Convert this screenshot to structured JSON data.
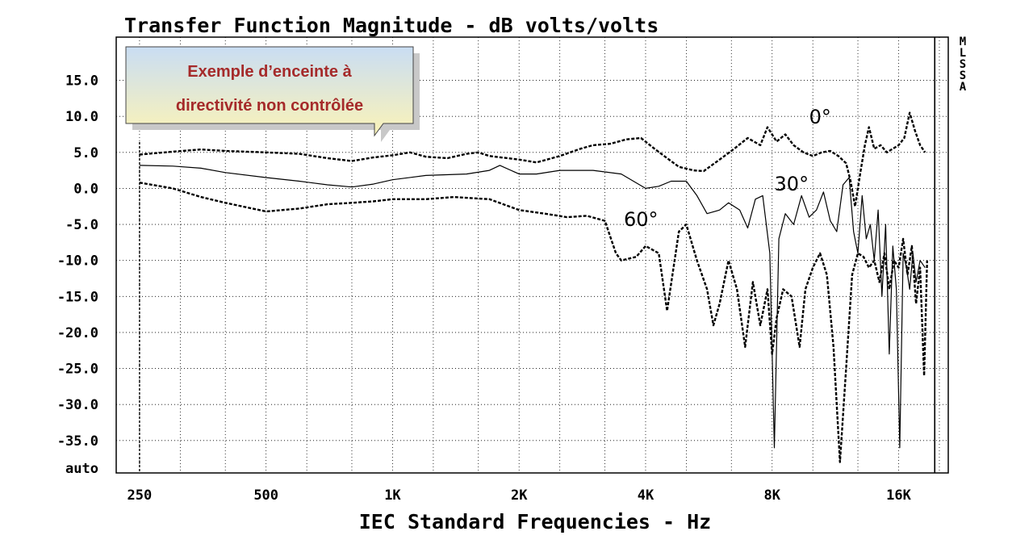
{
  "chart_data": {
    "type": "line",
    "title": "Transfer Function Magnitude - dB volts/volts",
    "xlabel": "IEC Standard Frequencies - Hz",
    "ylabel": "",
    "x_scale": "log",
    "xlim": [
      220,
      21000
    ],
    "ylim": [
      -39.5,
      21
    ],
    "y_ticks": [
      15,
      10,
      5,
      0,
      -5,
      -10,
      -15,
      -20,
      -25,
      -30,
      -35
    ],
    "y_tick_labels": [
      "15.0",
      "10.0",
      "5.0",
      "0.0",
      "-5.0",
      "-10.0",
      "-15.0",
      "-20.0",
      "-25.0",
      "-30.0",
      "-35.0"
    ],
    "y_bottom_label": "auto",
    "x_ticks": [
      250,
      500,
      1000,
      2000,
      4000,
      8000,
      16000
    ],
    "x_tick_labels": [
      "250",
      "500",
      "1K",
      "2K",
      "4K",
      "8K",
      "16K"
    ],
    "side_label": "MLSSA",
    "grid": true,
    "marker_x": 19500,
    "series": [
      {
        "name": "0°",
        "style": "dashed",
        "points": [
          [
            250,
            4.7
          ],
          [
            300,
            5.1
          ],
          [
            350,
            5.4
          ],
          [
            400,
            5.2
          ],
          [
            500,
            5.0
          ],
          [
            600,
            4.8
          ],
          [
            700,
            4.2
          ],
          [
            800,
            3.8
          ],
          [
            900,
            4.3
          ],
          [
            1000,
            4.6
          ],
          [
            1100,
            5.0
          ],
          [
            1200,
            4.4
          ],
          [
            1350,
            4.2
          ],
          [
            1500,
            4.8
          ],
          [
            1600,
            5.0
          ],
          [
            1700,
            4.5
          ],
          [
            2000,
            4.0
          ],
          [
            2200,
            3.6
          ],
          [
            2500,
            4.5
          ],
          [
            2800,
            5.5
          ],
          [
            3000,
            6.0
          ],
          [
            3300,
            6.2
          ],
          [
            3600,
            6.8
          ],
          [
            3900,
            7.0
          ],
          [
            4200,
            5.5
          ],
          [
            4500,
            4.2
          ],
          [
            4800,
            3.0
          ],
          [
            5200,
            2.5
          ],
          [
            5500,
            2.4
          ],
          [
            6000,
            4.0
          ],
          [
            6500,
            5.5
          ],
          [
            7000,
            7.0
          ],
          [
            7500,
            6.0
          ],
          [
            7800,
            8.5
          ],
          [
            8200,
            6.5
          ],
          [
            8600,
            7.5
          ],
          [
            9000,
            6.0
          ],
          [
            9500,
            5.0
          ],
          [
            10000,
            4.5
          ],
          [
            10500,
            5.0
          ],
          [
            11000,
            5.2
          ],
          [
            11500,
            4.5
          ],
          [
            12000,
            3.5
          ],
          [
            12300,
            1.0
          ],
          [
            12600,
            -2.5
          ],
          [
            13000,
            2.5
          ],
          [
            13300,
            6.0
          ],
          [
            13600,
            8.5
          ],
          [
            14000,
            5.5
          ],
          [
            14500,
            6.0
          ],
          [
            15000,
            5.0
          ],
          [
            15500,
            5.5
          ],
          [
            16000,
            6.0
          ],
          [
            16500,
            7.0
          ],
          [
            17000,
            10.5
          ],
          [
            17500,
            8.0
          ],
          [
            18000,
            6.0
          ],
          [
            18500,
            5.0
          ]
        ]
      },
      {
        "name": "30°",
        "style": "solid",
        "points": [
          [
            250,
            3.2
          ],
          [
            300,
            3.1
          ],
          [
            350,
            2.8
          ],
          [
            400,
            2.2
          ],
          [
            500,
            1.5
          ],
          [
            600,
            1.0
          ],
          [
            700,
            0.5
          ],
          [
            800,
            0.2
          ],
          [
            900,
            0.6
          ],
          [
            1000,
            1.2
          ],
          [
            1200,
            1.8
          ],
          [
            1500,
            2.0
          ],
          [
            1700,
            2.5
          ],
          [
            1800,
            3.2
          ],
          [
            2000,
            2.0
          ],
          [
            2200,
            2.0
          ],
          [
            2500,
            2.5
          ],
          [
            3000,
            2.5
          ],
          [
            3500,
            2.0
          ],
          [
            4000,
            0.0
          ],
          [
            4300,
            0.3
          ],
          [
            4600,
            1.0
          ],
          [
            5000,
            1.0
          ],
          [
            5300,
            -1.0
          ],
          [
            5600,
            -3.5
          ],
          [
            6000,
            -3.0
          ],
          [
            6300,
            -2.0
          ],
          [
            6700,
            -3.0
          ],
          [
            7000,
            -5.5
          ],
          [
            7300,
            -1.5
          ],
          [
            7600,
            -1.0
          ],
          [
            7900,
            -9.0
          ],
          [
            8100,
            -36.0
          ],
          [
            8300,
            -7.0
          ],
          [
            8600,
            -3.5
          ],
          [
            9000,
            -5.0
          ],
          [
            9400,
            -1.0
          ],
          [
            9800,
            -4.0
          ],
          [
            10200,
            -3.0
          ],
          [
            10600,
            -0.5
          ],
          [
            11000,
            -4.5
          ],
          [
            11400,
            -6.0
          ],
          [
            11800,
            0.5
          ],
          [
            12200,
            1.5
          ],
          [
            12500,
            -6.0
          ],
          [
            12800,
            -9.0
          ],
          [
            13100,
            -1.0
          ],
          [
            13400,
            -7.0
          ],
          [
            13700,
            -5.0
          ],
          [
            14000,
            -10.0
          ],
          [
            14300,
            -3.0
          ],
          [
            14600,
            -15.0
          ],
          [
            14900,
            -5.0
          ],
          [
            15200,
            -23.0
          ],
          [
            15500,
            -8.0
          ],
          [
            15800,
            -14.0
          ],
          [
            16100,
            -36.0
          ],
          [
            16400,
            -9.0
          ],
          [
            16700,
            -11.0
          ],
          [
            17000,
            -14.0
          ],
          [
            17300,
            -9.0
          ],
          [
            17600,
            -13.0
          ],
          [
            18000,
            -10.0
          ],
          [
            18500,
            -11.0
          ]
        ]
      },
      {
        "name": "60°",
        "style": "dashed",
        "points": [
          [
            250,
            0.8
          ],
          [
            300,
            0.0
          ],
          [
            350,
            -1.2
          ],
          [
            400,
            -2.0
          ],
          [
            500,
            -3.2
          ],
          [
            600,
            -2.8
          ],
          [
            700,
            -2.2
          ],
          [
            800,
            -2.0
          ],
          [
            900,
            -1.8
          ],
          [
            1000,
            -1.5
          ],
          [
            1200,
            -1.5
          ],
          [
            1400,
            -1.2
          ],
          [
            1700,
            -1.5
          ],
          [
            2000,
            -3.0
          ],
          [
            2300,
            -3.5
          ],
          [
            2600,
            -4.0
          ],
          [
            2900,
            -3.8
          ],
          [
            3200,
            -4.5
          ],
          [
            3400,
            -9.0
          ],
          [
            3500,
            -10.0
          ],
          [
            3800,
            -9.5
          ],
          [
            4000,
            -8.0
          ],
          [
            4300,
            -9.0
          ],
          [
            4500,
            -17.0
          ],
          [
            4800,
            -6.0
          ],
          [
            5000,
            -5.0
          ],
          [
            5300,
            -10.0
          ],
          [
            5600,
            -14.0
          ],
          [
            5800,
            -19.0
          ],
          [
            6000,
            -16.0
          ],
          [
            6300,
            -10.0
          ],
          [
            6600,
            -14.0
          ],
          [
            6900,
            -22.0
          ],
          [
            7200,
            -13.0
          ],
          [
            7500,
            -19.0
          ],
          [
            7800,
            -14.0
          ],
          [
            8000,
            -23.0
          ],
          [
            8200,
            -18.0
          ],
          [
            8500,
            -14.0
          ],
          [
            8900,
            -15.0
          ],
          [
            9300,
            -22.0
          ],
          [
            9600,
            -14.0
          ],
          [
            10000,
            -11.0
          ],
          [
            10400,
            -9.0
          ],
          [
            10800,
            -12.0
          ],
          [
            11200,
            -22.0
          ],
          [
            11600,
            -38.0
          ],
          [
            12000,
            -25.0
          ],
          [
            12400,
            -12.0
          ],
          [
            12800,
            -9.0
          ],
          [
            13200,
            -9.5
          ],
          [
            13600,
            -11.0
          ],
          [
            14000,
            -10.0
          ],
          [
            14400,
            -13.0
          ],
          [
            14800,
            -9.0
          ],
          [
            15200,
            -14.0
          ],
          [
            15600,
            -10.0
          ],
          [
            16000,
            -11.0
          ],
          [
            16400,
            -7.0
          ],
          [
            16800,
            -12.0
          ],
          [
            17200,
            -8.0
          ],
          [
            17600,
            -16.0
          ],
          [
            18000,
            -11.0
          ],
          [
            18400,
            -26.0
          ],
          [
            18700,
            -10.0
          ]
        ]
      }
    ],
    "annotations": [
      {
        "text": "0°",
        "x": 9800,
        "y": 9.0
      },
      {
        "text": "30°",
        "x": 8100,
        "y": -0.3
      },
      {
        "text": "60°",
        "x": 3550,
        "y": -5.2
      }
    ]
  },
  "callout": {
    "line1": "Exemple d’enceinte à",
    "line2": "directivité non contrôlée",
    "text_color": "#a52a2a",
    "fill_top": "#c9ddf3",
    "fill_bottom": "#fbf3b8"
  }
}
